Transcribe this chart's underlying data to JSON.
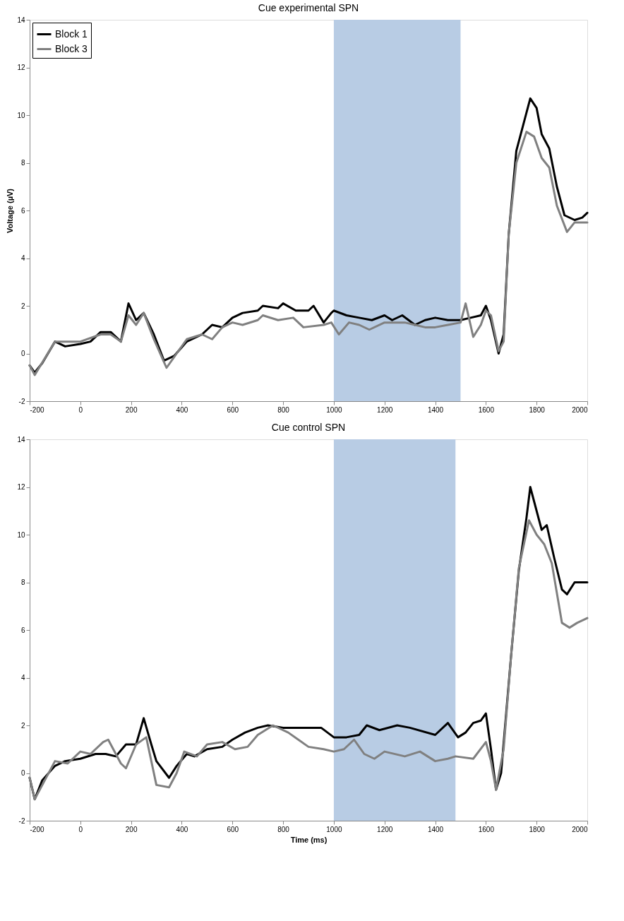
{
  "chart_data": [
    {
      "type": "line",
      "title": "Cue experimental  SPN",
      "ylabel": "Voltage (µV)",
      "xlim": [
        -200,
        2000
      ],
      "ylim": [
        -2,
        14
      ],
      "xticks": [
        -200,
        0,
        200,
        400,
        600,
        800,
        1000,
        1200,
        1400,
        1600,
        1800,
        2000
      ],
      "yticks": [
        -2,
        0,
        2,
        4,
        6,
        8,
        10,
        12,
        14
      ],
      "grid": false,
      "legend": "top left",
      "bands": [
        {
          "axis": "x",
          "from": 1000,
          "to": 1500,
          "color": "#b8cce4"
        }
      ],
      "series": [
        {
          "name": "Block 1",
          "color": "#000000",
          "x": [
            -200,
            -180,
            -150,
            -100,
            -60,
            0,
            40,
            80,
            120,
            160,
            190,
            220,
            250,
            290,
            330,
            370,
            420,
            480,
            520,
            560,
            600,
            640,
            700,
            720,
            780,
            800,
            850,
            900,
            920,
            960,
            990,
            1000,
            1050,
            1100,
            1150,
            1200,
            1230,
            1270,
            1320,
            1360,
            1400,
            1450,
            1500,
            1540,
            1580,
            1600,
            1620,
            1650,
            1670,
            1690,
            1720,
            1750,
            1775,
            1800,
            1820,
            1850,
            1880,
            1910,
            1950,
            1980,
            2000
          ],
          "values": [
            -0.5,
            -0.8,
            -0.4,
            0.5,
            0.3,
            0.4,
            0.5,
            0.9,
            0.9,
            0.5,
            2.1,
            1.4,
            1.7,
            0.8,
            -0.3,
            -0.1,
            0.5,
            0.8,
            1.2,
            1.1,
            1.5,
            1.7,
            1.8,
            2.0,
            1.9,
            2.1,
            1.8,
            1.8,
            2.0,
            1.3,
            1.7,
            1.8,
            1.6,
            1.5,
            1.4,
            1.6,
            1.4,
            1.6,
            1.2,
            1.4,
            1.5,
            1.4,
            1.4,
            1.5,
            1.6,
            2.0,
            1.4,
            0.0,
            0.8,
            5.0,
            8.5,
            9.7,
            10.7,
            10.3,
            9.2,
            8.6,
            7.0,
            5.8,
            5.6,
            5.7,
            5.9
          ]
        },
        {
          "name": "Block 3",
          "color": "#808080",
          "x": [
            -200,
            -180,
            -100,
            0,
            80,
            120,
            160,
            190,
            220,
            250,
            290,
            340,
            380,
            420,
            480,
            520,
            560,
            600,
            640,
            700,
            720,
            780,
            840,
            880,
            960,
            990,
            1020,
            1060,
            1100,
            1140,
            1200,
            1280,
            1320,
            1360,
            1400,
            1450,
            1500,
            1520,
            1550,
            1580,
            1600,
            1620,
            1650,
            1670,
            1690,
            1720,
            1760,
            1790,
            1820,
            1850,
            1880,
            1920,
            1950,
            2000
          ],
          "values": [
            -0.5,
            -0.9,
            0.5,
            0.5,
            0.8,
            0.8,
            0.5,
            1.6,
            1.2,
            1.7,
            0.6,
            -0.6,
            0.0,
            0.6,
            0.8,
            0.6,
            1.1,
            1.3,
            1.2,
            1.4,
            1.6,
            1.4,
            1.5,
            1.1,
            1.2,
            1.3,
            0.8,
            1.3,
            1.2,
            1.0,
            1.3,
            1.3,
            1.2,
            1.1,
            1.1,
            1.2,
            1.3,
            2.1,
            0.7,
            1.2,
            1.8,
            1.6,
            0.1,
            0.5,
            5.0,
            8.0,
            9.3,
            9.1,
            8.2,
            7.8,
            6.2,
            5.1,
            5.5,
            5.5
          ]
        }
      ]
    },
    {
      "type": "line",
      "title": "Cue control  SPN",
      "xlabel": "Time (ms)",
      "xlim": [
        -200,
        2000
      ],
      "ylim": [
        -2,
        14
      ],
      "xticks": [
        -200,
        0,
        200,
        400,
        600,
        800,
        1000,
        1200,
        1400,
        1600,
        1800,
        2000
      ],
      "yticks": [
        -2,
        0,
        2,
        4,
        6,
        8,
        10,
        12,
        14
      ],
      "grid": false,
      "bands": [
        {
          "axis": "x",
          "from": 1000,
          "to": 1480,
          "color": "#b8cce4"
        }
      ],
      "series": [
        {
          "color": "#000000",
          "x": [
            -200,
            -180,
            -150,
            -100,
            -60,
            0,
            60,
            100,
            140,
            180,
            220,
            250,
            280,
            300,
            350,
            380,
            420,
            450,
            500,
            560,
            600,
            650,
            700,
            740,
            800,
            850,
            900,
            950,
            1000,
            1050,
            1100,
            1130,
            1180,
            1250,
            1300,
            1400,
            1450,
            1490,
            1520,
            1550,
            1580,
            1600,
            1620,
            1640,
            1660,
            1700,
            1730,
            1760,
            1775,
            1800,
            1820,
            1840,
            1870,
            1900,
            1920,
            1950,
            2000
          ],
          "values": [
            -0.2,
            -1.1,
            -0.3,
            0.3,
            0.5,
            0.6,
            0.8,
            0.8,
            0.7,
            1.2,
            1.2,
            2.3,
            1.2,
            0.5,
            -0.2,
            0.3,
            0.8,
            0.7,
            1.0,
            1.1,
            1.4,
            1.7,
            1.9,
            2.0,
            1.9,
            1.9,
            1.9,
            1.9,
            1.5,
            1.5,
            1.6,
            2.0,
            1.8,
            2.0,
            1.9,
            1.6,
            2.1,
            1.5,
            1.7,
            2.1,
            2.2,
            2.5,
            1.0,
            -0.7,
            0.0,
            5.0,
            8.5,
            10.7,
            12.0,
            11.0,
            10.2,
            10.4,
            9.0,
            7.7,
            7.5,
            8.0,
            8.0
          ]
        },
        {
          "color": "#808080",
          "x": [
            -200,
            -180,
            -100,
            -50,
            0,
            40,
            90,
            110,
            160,
            180,
            220,
            260,
            300,
            350,
            380,
            410,
            460,
            500,
            560,
            610,
            660,
            700,
            760,
            820,
            860,
            900,
            960,
            1000,
            1040,
            1080,
            1120,
            1160,
            1200,
            1280,
            1340,
            1400,
            1450,
            1480,
            1550,
            1600,
            1620,
            1640,
            1670,
            1700,
            1730,
            1770,
            1800,
            1830,
            1860,
            1900,
            1930,
            1960,
            2000
          ],
          "values": [
            -0.2,
            -1.1,
            0.5,
            0.4,
            0.9,
            0.8,
            1.3,
            1.4,
            0.4,
            0.2,
            1.2,
            1.5,
            -0.5,
            -0.6,
            0.0,
            0.9,
            0.7,
            1.2,
            1.3,
            1.0,
            1.1,
            1.6,
            2.0,
            1.7,
            1.4,
            1.1,
            1.0,
            0.9,
            1.0,
            1.4,
            0.8,
            0.6,
            0.9,
            0.7,
            0.9,
            0.5,
            0.6,
            0.7,
            0.6,
            1.3,
            0.5,
            -0.7,
            1.0,
            5.0,
            8.6,
            10.6,
            10.0,
            9.6,
            8.8,
            6.3,
            6.1,
            6.3,
            6.5
          ]
        }
      ]
    }
  ]
}
